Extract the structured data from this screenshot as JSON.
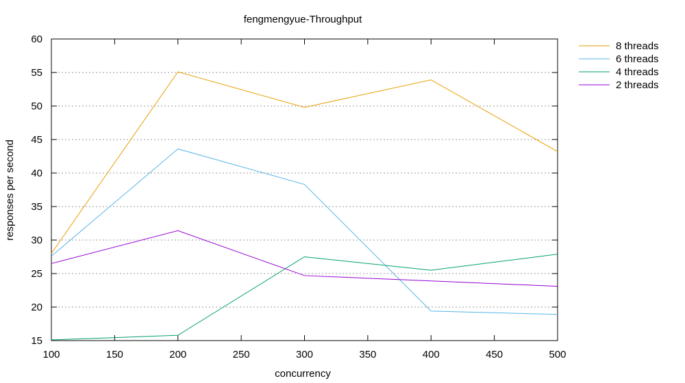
{
  "chart_data": {
    "type": "line",
    "title": "fengmengyue-Throughput",
    "xlabel": "concurrency",
    "ylabel": "responses per second",
    "x": [
      100,
      200,
      300,
      400,
      500
    ],
    "xlim": [
      100,
      500
    ],
    "ylim": [
      15,
      60
    ],
    "xticks": [
      "100",
      "150",
      "200",
      "250",
      "300",
      "350",
      "400",
      "450",
      "500"
    ],
    "yticks": [
      "15",
      "20",
      "25",
      "30",
      "35",
      "40",
      "45",
      "50",
      "55",
      "60"
    ],
    "grid": "horizontal dotted",
    "legend_position": "top-right outside",
    "series": [
      {
        "name": "8 threads",
        "color": "#e69f00",
        "values": [
          28.0,
          55.1,
          49.8,
          53.9,
          43.2
        ]
      },
      {
        "name": "6 threads",
        "color": "#56b4e9",
        "values": [
          27.6,
          43.6,
          38.3,
          19.4,
          18.9
        ]
      },
      {
        "name": "4 threads",
        "color": "#009e73",
        "values": [
          15.1,
          15.8,
          27.5,
          25.5,
          27.9
        ]
      },
      {
        "name": "2 threads",
        "color": "#9400d3",
        "values": [
          26.5,
          31.4,
          24.7,
          23.9,
          23.1
        ]
      }
    ]
  }
}
